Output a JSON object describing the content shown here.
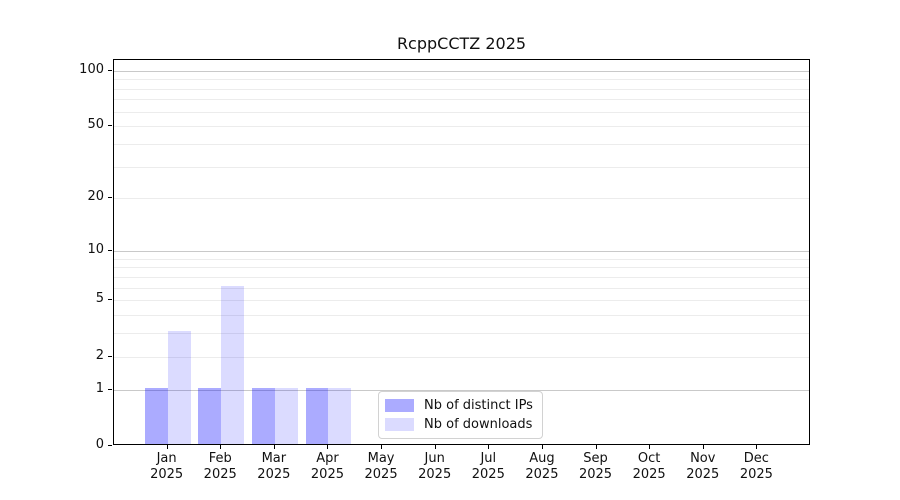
{
  "chart_data": {
    "type": "bar",
    "title": "RcppCCTZ 2025",
    "categories": [
      "Jan 2025",
      "Feb 2025",
      "Mar 2025",
      "Apr 2025",
      "May 2025",
      "Jun 2025",
      "Jul 2025",
      "Aug 2025",
      "Sep 2025",
      "Oct 2025",
      "Nov 2025",
      "Dec 2025"
    ],
    "series": [
      {
        "name": "Nb of distinct IPs",
        "color": "rgba(0,0,255,0.33)",
        "values": [
          1,
          1,
          1,
          1,
          0,
          0,
          0,
          0,
          0,
          0,
          0,
          0
        ]
      },
      {
        "name": "Nb of downloads",
        "color": "rgba(0,0,255,0.14)",
        "values": [
          3,
          6,
          1,
          1,
          0,
          0,
          0,
          0,
          0,
          0,
          0,
          0
        ]
      }
    ],
    "yscale": "log1p",
    "ylim": [
      0,
      114
    ],
    "ytick_labels": [
      0,
      1,
      2,
      5,
      10,
      20,
      50,
      100
    ],
    "gridlines_major": [
      1,
      10,
      100
    ],
    "gridlines_minor": [
      2,
      3,
      4,
      5,
      6,
      7,
      8,
      9,
      20,
      30,
      40,
      50,
      60,
      70,
      80,
      90
    ],
    "grid_color_major": "#c9c9c9",
    "grid_color_minor": "#ececec",
    "legend_position": "inside-bottom-center",
    "grid": "on"
  }
}
